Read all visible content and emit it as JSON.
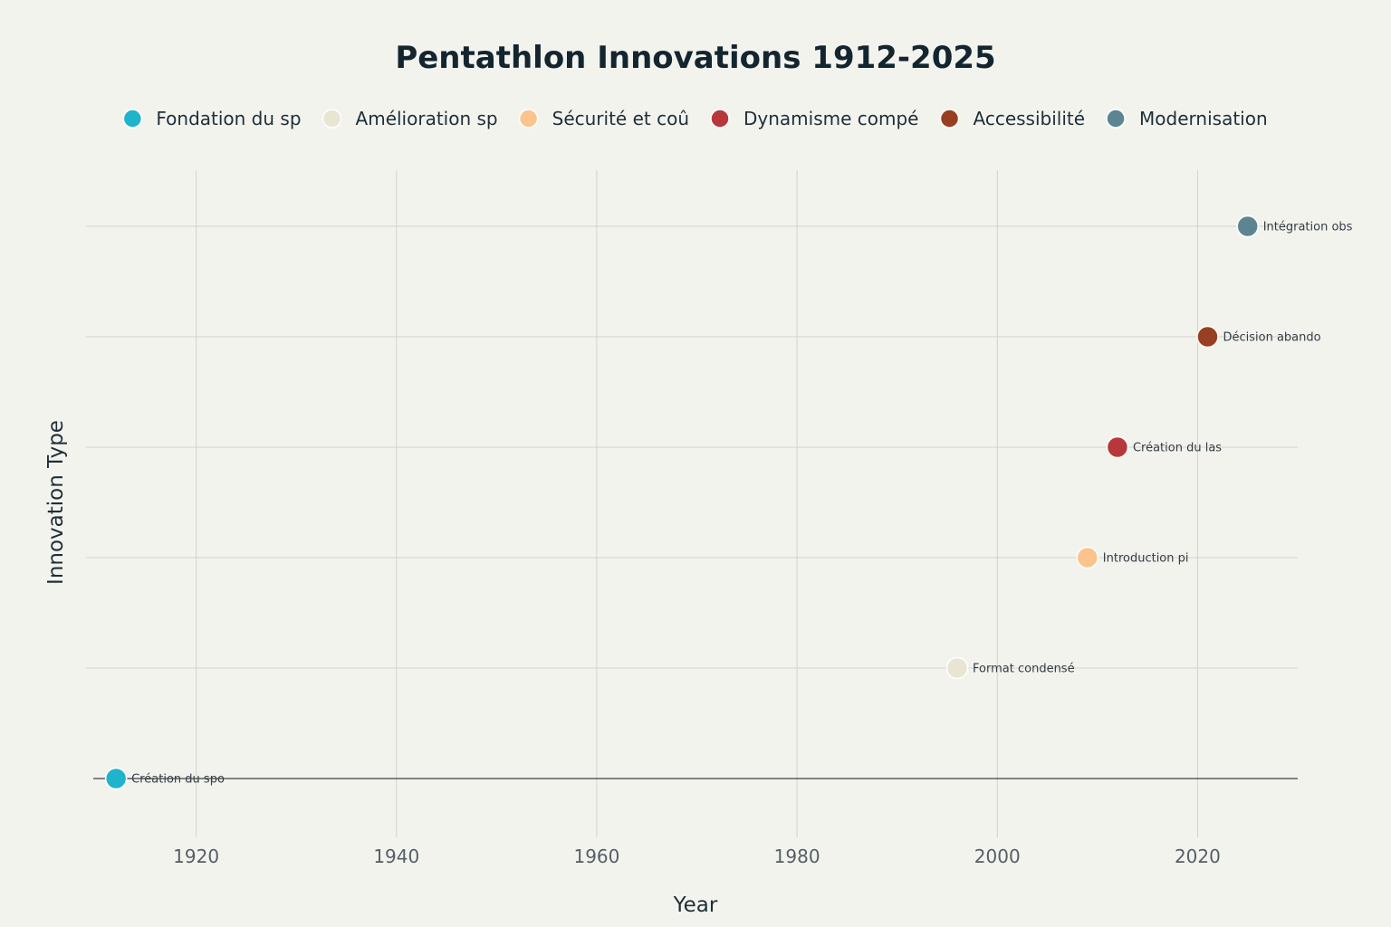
{
  "chart_data": {
    "type": "scatter",
    "title": "Pentathlon Innovations 1912-2025",
    "xlabel": "Year",
    "ylabel": "Innovation Type",
    "xlim": [
      1909,
      2030
    ],
    "ylim": [
      -0.5,
      5.5
    ],
    "x_ticks": [
      1920,
      1940,
      1960,
      1980,
      2000,
      2020
    ],
    "x_tick_labels": [
      "1920",
      "1940",
      "1960",
      "1980",
      "2000",
      "2020"
    ],
    "y_grid": [
      0,
      1,
      2,
      3,
      4,
      5
    ],
    "grid": true,
    "legend_position": "top",
    "legend": [
      {
        "label": "Fondation du sp",
        "color": "#1fb4cc"
      },
      {
        "label": "Amélioration sp",
        "color": "#e8e6d2"
      },
      {
        "label": "Sécurité et coû",
        "color": "#fbc48c"
      },
      {
        "label": "Dynamisme compé",
        "color": "#b8373a"
      },
      {
        "label": "Accessibilité",
        "color": "#973f20"
      },
      {
        "label": "Modernisation",
        "color": "#5d8591"
      }
    ],
    "series": [
      {
        "name": "Fondation du sp",
        "x": 1912,
        "y": 0,
        "label": "Création du spo",
        "color": "#1fb4cc"
      },
      {
        "name": "Amélioration sp",
        "x": 1996,
        "y": 1,
        "label": "Format condensé",
        "color": "#e8e6d2"
      },
      {
        "name": "Sécurité et coû",
        "x": 2009,
        "y": 2,
        "label": "Introduction pi",
        "color": "#fbc48c"
      },
      {
        "name": "Dynamisme compé",
        "x": 2012,
        "y": 3,
        "label": "Création du las",
        "color": "#b8373a"
      },
      {
        "name": "Accessibilité",
        "x": 2021,
        "y": 4,
        "label": "Décision abando",
        "color": "#973f20"
      },
      {
        "name": "Modernisation",
        "x": 2025,
        "y": 5,
        "label": "Intégration obs",
        "color": "#5d8591"
      }
    ]
  }
}
